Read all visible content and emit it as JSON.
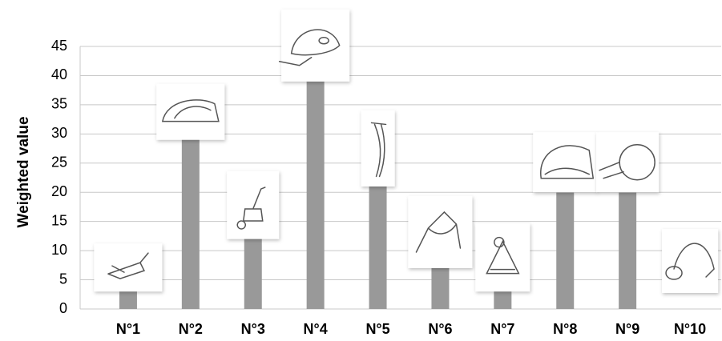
{
  "chart_data": {
    "type": "bar",
    "y_label": "Weighted value",
    "categories": [
      "N°1",
      "N°2",
      "N°3",
      "N°4",
      "N°5",
      "N°6",
      "N°7",
      "N°8",
      "N°9",
      "N°10"
    ],
    "values": [
      3,
      29,
      12,
      39,
      21,
      7,
      3,
      20,
      20,
      0
    ],
    "color": "#999999",
    "ylim": [
      0,
      45
    ],
    "yticks": [
      0,
      5,
      10,
      15,
      20,
      25,
      30,
      35,
      40,
      45
    ],
    "grid": true
  }
}
